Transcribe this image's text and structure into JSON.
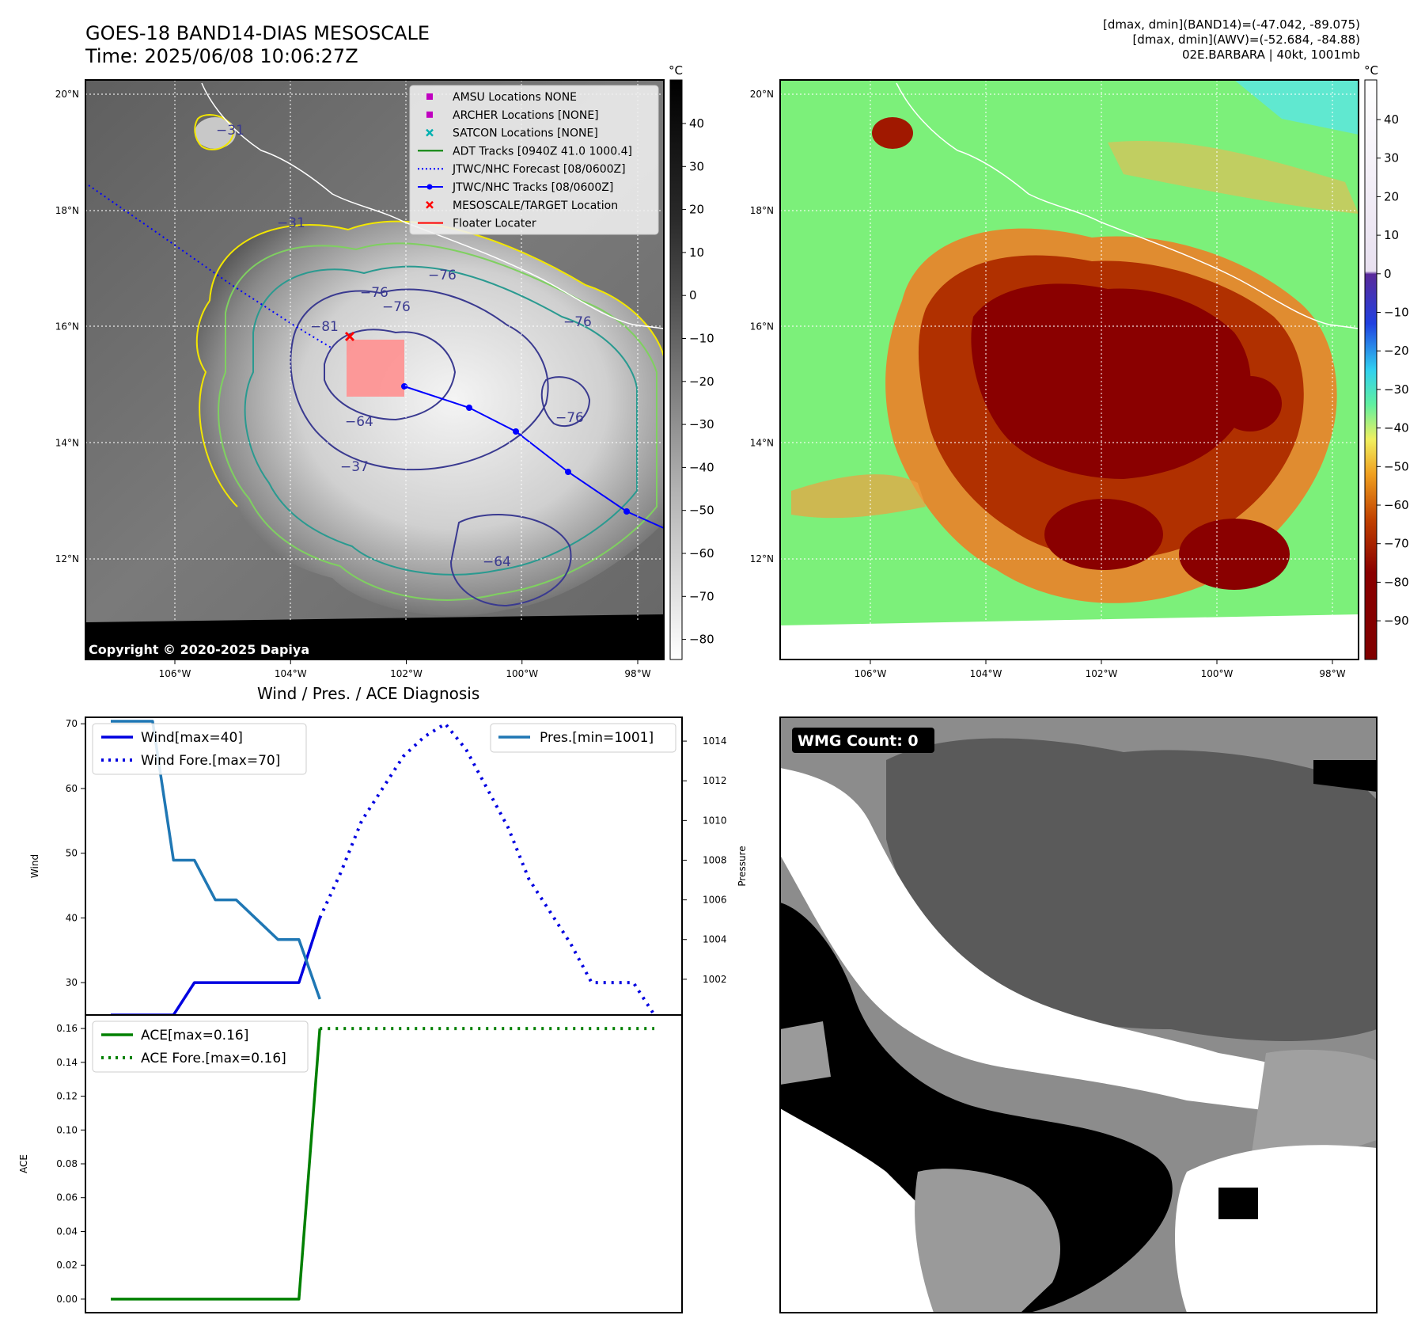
{
  "header": {
    "title_line1": "GOES-18 BAND14-DIAS MESOSCALE",
    "title_line2": "Time: 2025/06/08 10:06:27Z",
    "stats_line1": "[dmax, dmin](BAND14)=(-47.042, -89.075)",
    "stats_line2": "[dmax, dmin](AWV)=(-52.684, -84.88)",
    "stats_line3": "02E.BARBARA | 40kt, 1001mb"
  },
  "map_panel": {
    "lon_ticks": [
      "106°W",
      "104°W",
      "102°W",
      "100°W",
      "98°W"
    ],
    "lat_ticks": [
      "20°N",
      "18°N",
      "16°N",
      "14°N",
      "12°N"
    ],
    "copyright": "Copyright © 2020-2025 Dapiya",
    "colorbar_unit": "°C",
    "colorbar_ticks": [
      "40",
      "30",
      "20",
      "10",
      "0",
      "−10",
      "−20",
      "−30",
      "−40",
      "−50",
      "−60",
      "−70",
      "−80"
    ],
    "contour_labels": [
      "−76",
      "−76",
      "−81",
      "−76",
      "−76",
      "−64",
      "−76",
      "−31",
      "−31",
      "−64",
      "−37"
    ],
    "legend": [
      {
        "label": "AMSU Locations NONE",
        "color": "#c000c0",
        "kind": "square"
      },
      {
        "label": "ARCHER Locations [NONE]",
        "color": "#c000c0",
        "kind": "square"
      },
      {
        "label": "SATCON Locations [NONE]",
        "color": "#00b0b0",
        "kind": "x"
      },
      {
        "label": "ADT Tracks [0940Z 41.0 1000.4]",
        "color": "#008000",
        "kind": "line"
      },
      {
        "label": "JTWC/NHC Forecast [08/0600Z]",
        "color": "#0000ff",
        "kind": "dotted"
      },
      {
        "label": "JTWC/NHC Tracks [08/0600Z]",
        "color": "#0000ff",
        "kind": "line-dot"
      },
      {
        "label": "MESOSCALE/TARGET Location",
        "color": "#ff0000",
        "kind": "x"
      },
      {
        "label": "Floater Locater",
        "color": "#ff0000",
        "kind": "line"
      }
    ]
  },
  "awv_panel": {
    "lon_ticks": [
      "106°W",
      "104°W",
      "102°W",
      "100°W",
      "98°W"
    ],
    "lat_ticks": [
      "20°N",
      "18°N",
      "16°N",
      "14°N",
      "12°N"
    ],
    "colorbar_unit": "°C",
    "colorbar_ticks": [
      "40",
      "30",
      "20",
      "10",
      "0",
      "−10",
      "−20",
      "−30",
      "−40",
      "−50",
      "−60",
      "−70",
      "−80",
      "−90"
    ]
  },
  "diagnosis": {
    "title": "Wind / Pres. / ACE Diagnosis"
  },
  "wmg_panel": {
    "label": "WMG Count: 0"
  },
  "chart_data": [
    {
      "type": "line",
      "title": "",
      "xlabel": "",
      "ylabel": "Wind",
      "y2label": "Pressure",
      "x": [
        0,
        1,
        2,
        3,
        4,
        5,
        6,
        7,
        8,
        9,
        10,
        11,
        12,
        13,
        14,
        15,
        16,
        17,
        18,
        19,
        20,
        21,
        22,
        23,
        24,
        25,
        26
      ],
      "ylim": [
        25,
        71
      ],
      "y2lim": [
        1000.2,
        1015.2
      ],
      "yticks": [
        "30",
        "40",
        "50",
        "60",
        "70"
      ],
      "y2ticks": [
        "1002",
        "1004",
        "1006",
        "1008",
        "1010",
        "1012",
        "1014"
      ],
      "series": [
        {
          "name": "Wind[max=40]",
          "axis": "left",
          "color": "#0000e0",
          "style": "solid",
          "x": [
            0,
            1,
            2,
            3,
            4,
            5,
            6,
            7,
            8,
            9,
            10
          ],
          "values": [
            25,
            25,
            25,
            25,
            30,
            30,
            30,
            30,
            30,
            30,
            40
          ]
        },
        {
          "name": "Wind Fore.[max=70]",
          "axis": "left",
          "color": "#0000e0",
          "style": "dotted",
          "x": [
            10,
            11,
            12,
            13,
            14,
            15,
            16,
            17,
            18,
            19,
            20,
            21,
            22,
            23,
            24,
            25,
            26
          ],
          "values": [
            40,
            47,
            55,
            60,
            65,
            68,
            70,
            66,
            60,
            54,
            46,
            41,
            36,
            30,
            30,
            30,
            25
          ]
        },
        {
          "name": "Pres.[min=1001]",
          "axis": "right",
          "color": "#1f77b4",
          "style": "solid",
          "x": [
            0,
            1,
            2,
            3,
            4,
            5,
            6,
            7,
            8,
            9,
            10
          ],
          "values": [
            1015,
            1015,
            1015,
            1008,
            1008,
            1006,
            1006,
            1005,
            1004,
            1004,
            1001
          ]
        }
      ]
    },
    {
      "type": "line",
      "title": "",
      "xlabel": "",
      "ylabel": "ACE",
      "x": [
        0,
        1,
        2,
        3,
        4,
        5,
        6,
        7,
        8,
        9,
        10,
        11,
        12,
        13,
        14,
        15,
        16,
        17,
        18,
        19,
        20,
        21,
        22,
        23,
        24,
        25,
        26
      ],
      "ylim": [
        -0.008,
        0.168
      ],
      "yticks": [
        "0.00",
        "0.02",
        "0.04",
        "0.06",
        "0.08",
        "0.10",
        "0.12",
        "0.14",
        "0.16"
      ],
      "series": [
        {
          "name": "ACE[max=0.16]",
          "color": "#008000",
          "style": "solid",
          "x": [
            0,
            1,
            2,
            3,
            4,
            5,
            6,
            7,
            8,
            9,
            10
          ],
          "values": [
            0,
            0,
            0,
            0,
            0,
            0,
            0,
            0,
            0,
            0,
            0.16
          ]
        },
        {
          "name": "ACE Fore.[max=0.16]",
          "color": "#008000",
          "style": "dotted",
          "x": [
            10,
            11,
            12,
            13,
            14,
            15,
            16,
            17,
            18,
            19,
            20,
            21,
            22,
            23,
            24,
            25,
            26
          ],
          "values": [
            0.16,
            0.16,
            0.16,
            0.16,
            0.16,
            0.16,
            0.16,
            0.16,
            0.16,
            0.16,
            0.16,
            0.16,
            0.16,
            0.16,
            0.16,
            0.16,
            0.16
          ]
        }
      ]
    }
  ]
}
